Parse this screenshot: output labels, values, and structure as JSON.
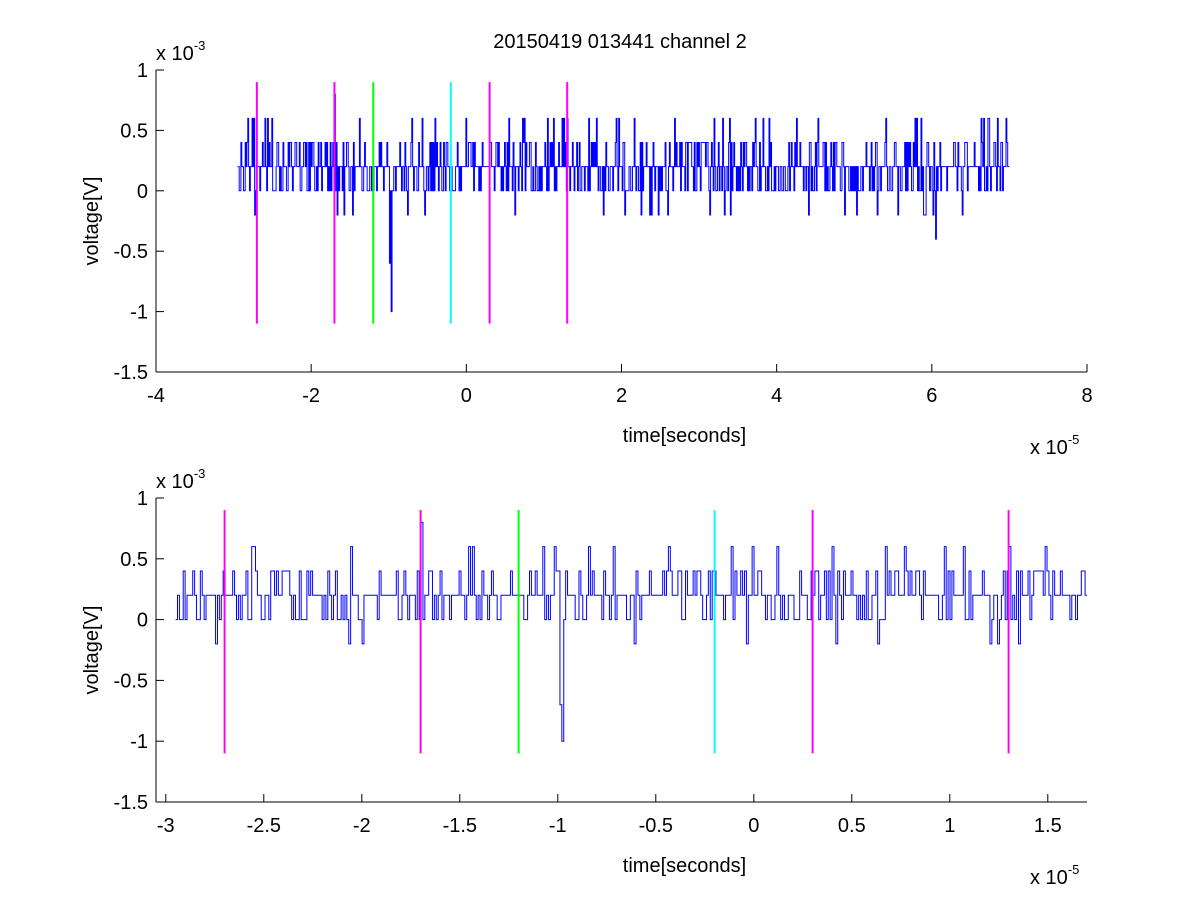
{
  "figure": {
    "title": "20150419 013441 channel 2"
  },
  "chart_data": [
    {
      "type": "line",
      "title": "20150419 013441 channel 2",
      "xlabel": "time[seconds]",
      "ylabel": "voltage[V]",
      "x_multiplier": "x 10",
      "x_exponent": "-5",
      "y_multiplier": "x 10",
      "y_exponent": "-3",
      "xlim": [
        -4,
        8
      ],
      "ylim": [
        -1.5,
        1
      ],
      "xticks": [
        -4,
        -2,
        0,
        2,
        4,
        6,
        8
      ],
      "xtick_labels": [
        "-4",
        "-2",
        "0",
        "2",
        "4",
        "6",
        "8"
      ],
      "yticks": [
        -1.5,
        -1,
        -0.5,
        0,
        0.5,
        1
      ],
      "ytick_labels": [
        "-1.5",
        "-1",
        "-0.5",
        "0",
        "0.5",
        "1"
      ],
      "grid": false,
      "series": [
        {
          "color": "#0000ff",
          "x_range": [
            -2.95,
            7.0
          ],
          "baseline": 0.2,
          "quantum": 0.2,
          "spikes": [
            {
              "x": -1.7,
              "y": 0.8
            },
            {
              "x": -2.6,
              "y": 0.6
            },
            {
              "x": 1.05,
              "y": 0.6
            },
            {
              "x": -0.97,
              "y": -1.0
            },
            {
              "x": -0.99,
              "y": -0.6
            },
            {
              "x": 6.05,
              "y": -0.4
            }
          ]
        }
      ],
      "vertical_markers": [
        {
          "x": -2.7,
          "color": "#ff00ff",
          "y_from": -1.1,
          "y_to": 0.9
        },
        {
          "x": -1.7,
          "color": "#ff00ff",
          "y_from": -1.1,
          "y_to": 0.9
        },
        {
          "x": -1.2,
          "color": "#00ff00",
          "y_from": -1.1,
          "y_to": 0.9
        },
        {
          "x": -0.2,
          "color": "#00ffff",
          "y_from": -1.1,
          "y_to": 0.9
        },
        {
          "x": 0.3,
          "color": "#ff00ff",
          "y_from": -1.1,
          "y_to": 0.9
        },
        {
          "x": 1.3,
          "color": "#ff00ff",
          "y_from": -1.1,
          "y_to": 0.9
        }
      ]
    },
    {
      "type": "line",
      "xlabel": "time[seconds]",
      "ylabel": "voltage[V]",
      "x_multiplier": "x 10",
      "x_exponent": "-5",
      "y_multiplier": "x 10",
      "y_exponent": "-3",
      "xlim": [
        -3.05,
        1.7
      ],
      "ylim": [
        -1.5,
        1
      ],
      "xticks": [
        -3,
        -2.5,
        -2,
        -1.5,
        -1,
        -0.5,
        0,
        0.5,
        1,
        1.5
      ],
      "xtick_labels": [
        "-3",
        "-2.5",
        "-2",
        "-1.5",
        "-1",
        "-0.5",
        "0",
        "0.5",
        "1",
        "1.5"
      ],
      "yticks": [
        -1.5,
        -1,
        -0.5,
        0,
        0.5,
        1
      ],
      "ytick_labels": [
        "-1.5",
        "-1",
        "-0.5",
        "0",
        "0.5",
        "1"
      ],
      "grid": false,
      "series": [
        {
          "color": "#0000ff",
          "x_range": [
            -2.95,
            1.7
          ],
          "baseline": 0.2,
          "quantum": 0.2,
          "spikes": [
            {
              "x": -1.7,
              "y": 0.8
            },
            {
              "x": -2.56,
              "y": 0.6
            },
            {
              "x": -0.72,
              "y": 0.6
            },
            {
              "x": 0.97,
              "y": 0.6
            },
            {
              "x": 1.49,
              "y": 0.6
            },
            {
              "x": -0.98,
              "y": -1.0
            },
            {
              "x": -0.99,
              "y": -0.7
            }
          ]
        }
      ],
      "vertical_markers": [
        {
          "x": -2.7,
          "color": "#ff00ff",
          "y_from": -1.1,
          "y_to": 0.9
        },
        {
          "x": -1.7,
          "color": "#ff00ff",
          "y_from": -1.1,
          "y_to": 0.9
        },
        {
          "x": -1.2,
          "color": "#00ff00",
          "y_from": -1.1,
          "y_to": 0.9
        },
        {
          "x": -0.2,
          "color": "#00ffff",
          "y_from": -1.1,
          "y_to": 0.9
        },
        {
          "x": 0.3,
          "color": "#ff00ff",
          "y_from": -1.1,
          "y_to": 0.9
        },
        {
          "x": 1.3,
          "color": "#ff00ff",
          "y_from": -1.1,
          "y_to": 0.9
        }
      ]
    }
  ]
}
